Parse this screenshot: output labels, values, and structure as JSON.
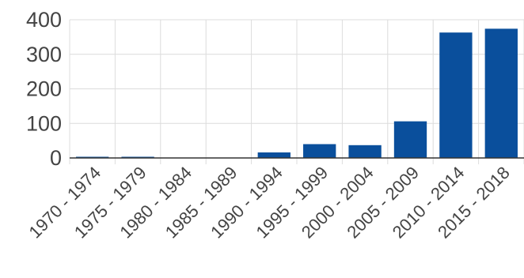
{
  "chart_data": {
    "type": "bar",
    "categories": [
      "1970 - 1974",
      "1975 - 1979",
      "1980 - 1984",
      "1985 - 1989",
      "1990 - 1994",
      "1995 - 1999",
      "2000 - 2004",
      "2005 - 2009",
      "2010 - 2014",
      "2015 - 2018"
    ],
    "values": [
      1,
      1,
      0,
      0,
      16,
      40,
      37,
      106,
      363,
      374
    ],
    "ylim": [
      0,
      400
    ],
    "yticks": [
      0,
      100,
      200,
      300,
      400
    ],
    "grid": true,
    "colors": {
      "bar": "#0a4f9c",
      "grid": "#dcdcdc",
      "axis": "#333333",
      "text": "#444444"
    }
  }
}
